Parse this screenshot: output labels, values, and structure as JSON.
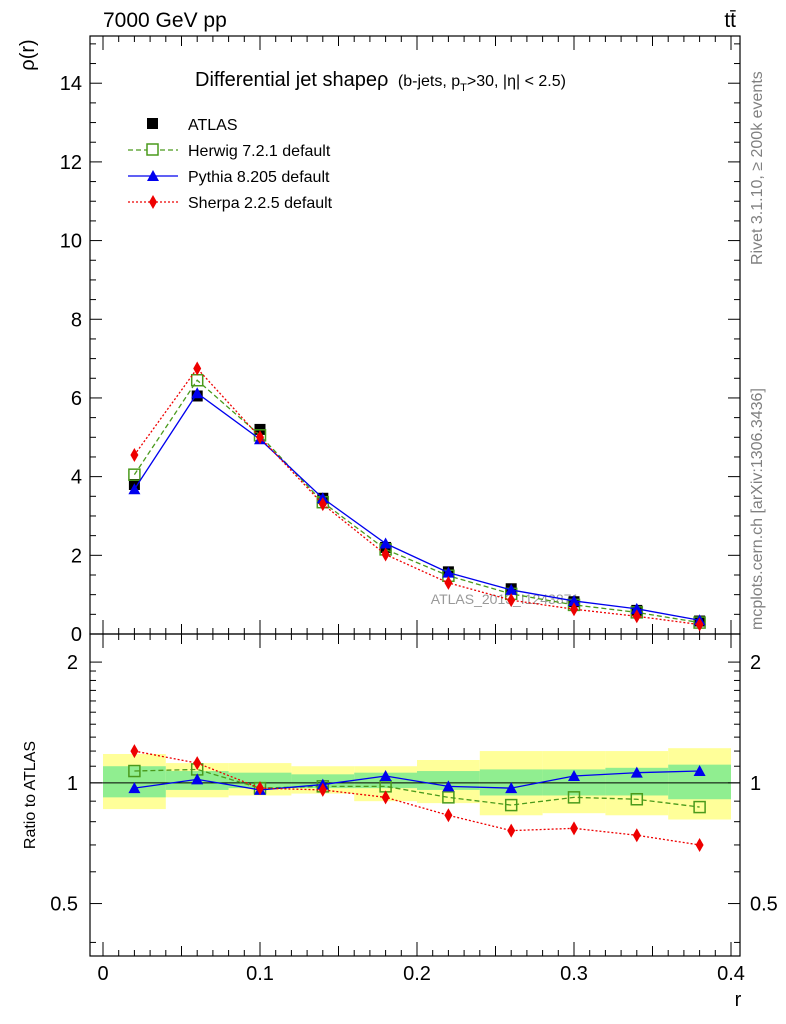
{
  "header": {
    "energy_label": "7000 GeV pp",
    "process_label": "tt̄",
    "side_rivet": "Rivet 3.1.10, ≥ 200k events",
    "side_source": "mcplots.cern.ch [arXiv:1306.3436]",
    "watermark": "ATLAS_2013_I1243871"
  },
  "chart_data": {
    "type": "line",
    "title": "Differential jet shapeρ",
    "title_detail": "(b-jets, p",
    "title_sub": "T",
    "title_tail": ">30, |η| < 2.5)",
    "xlabel": "r",
    "ylabel": "ρ(r)",
    "ratio_ylabel": "Ratio to ATLAS",
    "xlim": [
      0.0,
      0.4
    ],
    "ylim": [
      0,
      15.2
    ],
    "ratio_ylim": [
      0.37,
      2.35
    ],
    "x_ticks": [
      0,
      0.1,
      0.2,
      0.3,
      0.4
    ],
    "x_tick_labels": [
      "0",
      "0.1",
      "0.2",
      "0.3",
      "0.4"
    ],
    "y_ticks": [
      0,
      2,
      4,
      6,
      8,
      10,
      12,
      14
    ],
    "y_tick_labels": [
      "0",
      "2",
      "4",
      "6",
      "8",
      "10",
      "12",
      "14"
    ],
    "ratio_ticks": [
      0.5,
      1,
      2
    ],
    "ratio_tick_labels": [
      "0.5",
      "1",
      "2"
    ],
    "bin_edges": [
      0.0,
      0.04,
      0.08,
      0.12,
      0.16,
      0.2,
      0.24,
      0.28,
      0.32,
      0.36,
      0.4
    ],
    "x": [
      0.02,
      0.06,
      0.1,
      0.14,
      0.18,
      0.22,
      0.26,
      0.3,
      0.34,
      0.38
    ],
    "series": [
      {
        "name": "ATLAS",
        "key": "atlas",
        "color": "#000000",
        "values": [
          3.8,
          6.05,
          5.2,
          3.45,
          2.2,
          1.58,
          1.15,
          0.82,
          0.6,
          0.33
        ],
        "ratio": [
          1,
          1,
          1,
          1,
          1,
          1,
          1,
          1,
          1,
          1
        ]
      },
      {
        "name": "Herwig 7.2.1 default",
        "key": "herwig",
        "color": "#4a9a1c",
        "values": [
          4.05,
          6.45,
          5.05,
          3.35,
          2.15,
          1.48,
          1.02,
          0.74,
          0.55,
          0.29
        ],
        "ratio": [
          1.07,
          1.08,
          0.97,
          0.98,
          0.98,
          0.92,
          0.88,
          0.92,
          0.91,
          0.87
        ]
      },
      {
        "name": "Pythia 8.205 default",
        "key": "pythia",
        "color": "#0000ee",
        "values": [
          3.68,
          6.12,
          4.95,
          3.45,
          2.3,
          1.56,
          1.12,
          0.84,
          0.64,
          0.35
        ],
        "ratio": [
          0.97,
          1.02,
          0.96,
          0.99,
          1.04,
          0.98,
          0.97,
          1.04,
          1.06,
          1.07
        ]
      },
      {
        "name": "Sherpa 2.2.5 default",
        "key": "sherpa",
        "color": "#ee0000",
        "values": [
          4.55,
          6.75,
          5.0,
          3.3,
          2.02,
          1.3,
          0.86,
          0.63,
          0.45,
          0.24
        ],
        "ratio": [
          1.2,
          1.12,
          0.97,
          0.96,
          0.92,
          0.83,
          0.76,
          0.77,
          0.74,
          0.7
        ]
      }
    ],
    "band_inner": [
      [
        0.92,
        1.1
      ],
      [
        0.96,
        1.07
      ],
      [
        0.97,
        1.06
      ],
      [
        0.97,
        1.05
      ],
      [
        0.97,
        1.06
      ],
      [
        0.96,
        1.07
      ],
      [
        0.93,
        1.08
      ],
      [
        0.93,
        1.08
      ],
      [
        0.93,
        1.09
      ],
      [
        0.91,
        1.11
      ]
    ],
    "band_outer": [
      [
        0.86,
        1.18
      ],
      [
        0.92,
        1.12
      ],
      [
        0.93,
        1.12
      ],
      [
        0.94,
        1.1
      ],
      [
        0.9,
        1.1
      ],
      [
        0.89,
        1.14
      ],
      [
        0.83,
        1.2
      ],
      [
        0.84,
        1.2
      ],
      [
        0.83,
        1.2
      ],
      [
        0.81,
        1.22
      ]
    ],
    "band_colors": {
      "inner": "#90ee90",
      "outer": "#ffff99"
    }
  }
}
